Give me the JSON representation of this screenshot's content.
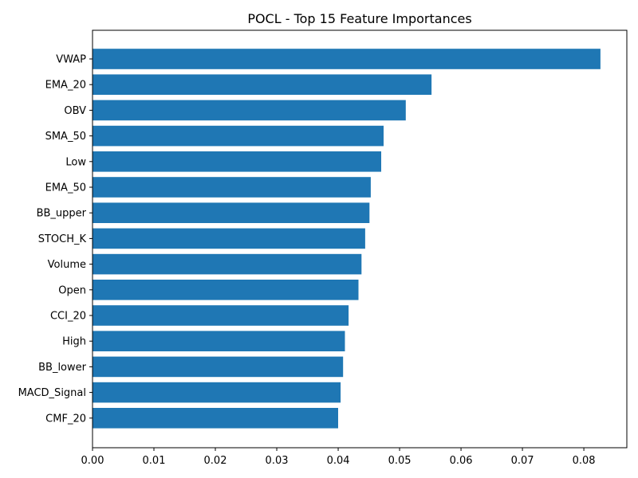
{
  "chart_data": {
    "type": "bar",
    "orientation": "horizontal",
    "title": "POCL - Top 15 Feature Importances",
    "xlabel": "",
    "ylabel": "",
    "categories": [
      "VWAP",
      "EMA_20",
      "OBV",
      "SMA_50",
      "Low",
      "EMA_50",
      "BB_upper",
      "STOCH_K",
      "Volume",
      "Open",
      "CCI_20",
      "High",
      "BB_lower",
      "MACD_Signal",
      "CMF_20"
    ],
    "values": [
      0.0827,
      0.0552,
      0.051,
      0.0474,
      0.047,
      0.0453,
      0.0451,
      0.0444,
      0.0438,
      0.0433,
      0.0417,
      0.0411,
      0.0408,
      0.0404,
      0.04
    ],
    "xlim": [
      0,
      0.087
    ],
    "xticks": [
      "0.00",
      "0.01",
      "0.02",
      "0.03",
      "0.04",
      "0.05",
      "0.06",
      "0.07",
      "0.08"
    ],
    "bar_color": "#1f77b4",
    "grid": false,
    "legend": "none"
  }
}
